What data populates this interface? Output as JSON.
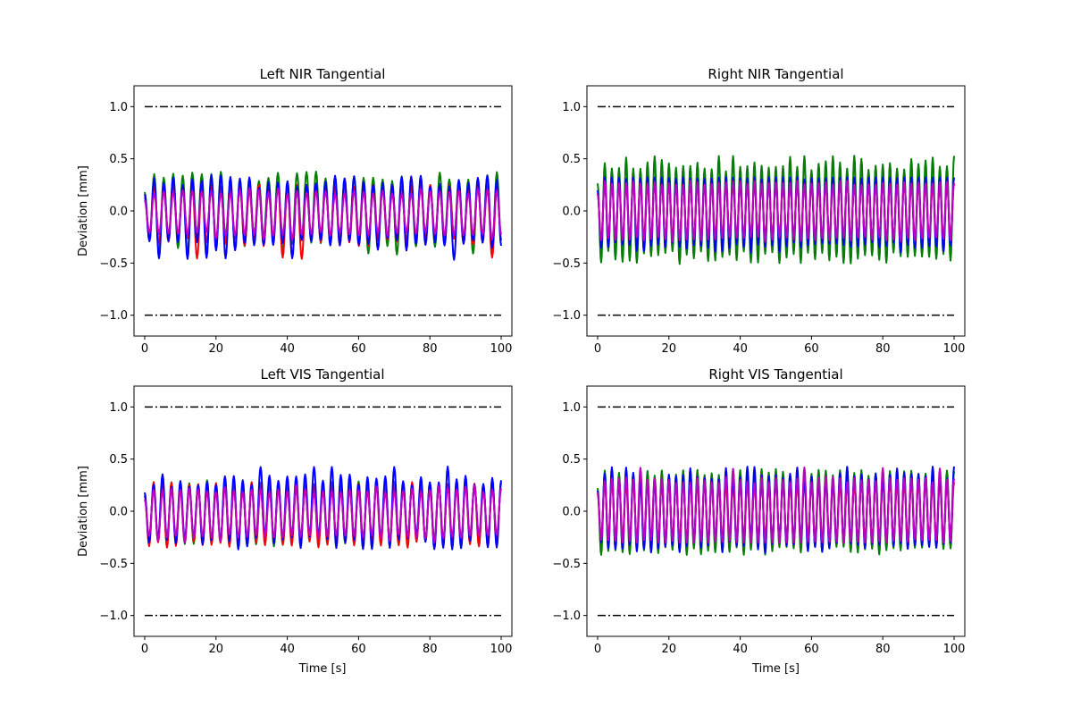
{
  "figure": {
    "background": "#ffffff"
  },
  "chart_data": [
    {
      "type": "line",
      "title": "Left NIR Tangential",
      "xlabel": "",
      "ylabel": "Deviation [mm]",
      "xlim": [
        -3,
        103
      ],
      "ylim": [
        -1.2,
        1.2
      ],
      "xticks": [
        0,
        20,
        40,
        60,
        80,
        100
      ],
      "yticks": [
        1.0,
        0.5,
        0.0,
        -0.5,
        -1.0
      ],
      "xtick_labels": [
        "0",
        "20",
        "40",
        "60",
        "80",
        "100"
      ],
      "ytick_labels": [
        "1.0",
        "0.5",
        "0.0",
        "−0.5",
        "−1.0"
      ],
      "grid": false,
      "reference_lines": [
        {
          "y": 1.0,
          "x": [
            0,
            100
          ],
          "style": "dash-dot",
          "color": "#000000"
        },
        {
          "y": -1.0,
          "x": [
            0,
            100
          ],
          "style": "dash-dot",
          "color": "#000000"
        }
      ],
      "series": [
        {
          "color": "#008000",
          "x_range": [
            0,
            100
          ],
          "period_s": 2.67,
          "mean": 0.0,
          "amplitude": 0.3,
          "peak_max": 0.38,
          "trough_min": -0.42,
          "jitter": 0.06
        },
        {
          "color": "#ff0000",
          "x_range": [
            0,
            100
          ],
          "period_s": 2.67,
          "mean": -0.03,
          "amplitude": 0.27,
          "peak_max": 0.25,
          "trough_min": -0.46,
          "jitter": 0.05
        },
        {
          "color": "#0000ff",
          "x_range": [
            0,
            100
          ],
          "period_s": 2.67,
          "mean": -0.02,
          "amplitude": 0.3,
          "peak_max": 0.35,
          "trough_min": -0.47,
          "jitter": 0.06
        },
        {
          "color": "#bf00bf",
          "x_range": [
            0,
            100
          ],
          "period_s": 2.67,
          "mean": -0.02,
          "amplitude": 0.2,
          "peak_max": 0.22,
          "trough_min": -0.28,
          "jitter": 0.02
        }
      ]
    },
    {
      "type": "line",
      "title": "Right NIR Tangential",
      "xlabel": "",
      "ylabel": "",
      "xlim": [
        -3,
        103
      ],
      "ylim": [
        -1.2,
        1.2
      ],
      "xticks": [
        0,
        20,
        40,
        60,
        80,
        100
      ],
      "yticks": [
        1.0,
        0.5,
        0.0,
        -0.5,
        -1.0
      ],
      "xtick_labels": [
        "0",
        "20",
        "40",
        "60",
        "80",
        "100"
      ],
      "ytick_labels": [
        "1.0",
        "0.5",
        "0.0",
        "−0.5",
        "−1.0"
      ],
      "grid": false,
      "reference_lines": [
        {
          "y": 1.0,
          "x": [
            0,
            100
          ],
          "style": "dash-dot",
          "color": "#000000"
        },
        {
          "y": -1.0,
          "x": [
            0,
            100
          ],
          "style": "dash-dot",
          "color": "#000000"
        }
      ],
      "series": [
        {
          "color": "#008000",
          "x_range": [
            0,
            100
          ],
          "period_s": 2.0,
          "mean": 0.0,
          "amplitude": 0.44,
          "peak_max": 0.53,
          "trough_min": -0.51,
          "jitter": 0.06
        },
        {
          "color": "#ff0000",
          "x_range": [
            0,
            100
          ],
          "period_s": 2.0,
          "mean": 0.0,
          "amplitude": 0.28,
          "peak_max": 0.3,
          "trough_min": -0.3,
          "jitter": 0.02
        },
        {
          "color": "#0000ff",
          "x_range": [
            0,
            100
          ],
          "period_s": 2.0,
          "mean": 0.0,
          "amplitude": 0.33,
          "peak_max": 0.32,
          "trough_min": -0.4,
          "jitter": 0.03
        },
        {
          "color": "#bf00bf",
          "x_range": [
            0,
            100
          ],
          "period_s": 2.0,
          "mean": 0.0,
          "amplitude": 0.27,
          "peak_max": 0.29,
          "trough_min": -0.3,
          "jitter": 0.02
        }
      ]
    },
    {
      "type": "line",
      "title": "Left VIS Tangential",
      "xlabel": "Time [s]",
      "ylabel": "Deviation [mm]",
      "xlim": [
        -3,
        103
      ],
      "ylim": [
        -1.2,
        1.2
      ],
      "xticks": [
        0,
        20,
        40,
        60,
        80,
        100
      ],
      "yticks": [
        1.0,
        0.5,
        0.0,
        -0.5,
        -1.0
      ],
      "xtick_labels": [
        "0",
        "20",
        "40",
        "60",
        "80",
        "100"
      ],
      "ytick_labels": [
        "1.0",
        "0.5",
        "0.0",
        "−0.5",
        "−1.0"
      ],
      "grid": false,
      "reference_lines": [
        {
          "y": 1.0,
          "x": [
            0,
            100
          ],
          "style": "dash-dot",
          "color": "#000000"
        },
        {
          "y": -1.0,
          "x": [
            0,
            100
          ],
          "style": "dash-dot",
          "color": "#000000"
        }
      ],
      "series": [
        {
          "color": "#008000",
          "x_range": [
            0,
            100
          ],
          "period_s": 2.5,
          "mean": -0.02,
          "amplitude": 0.27,
          "peak_max": 0.3,
          "trough_min": -0.34,
          "jitter": 0.03
        },
        {
          "color": "#ff0000",
          "x_range": [
            0,
            100
          ],
          "period_s": 2.5,
          "mean": -0.02,
          "amplitude": 0.29,
          "peak_max": 0.28,
          "trough_min": -0.35,
          "jitter": 0.02
        },
        {
          "color": "#0000ff",
          "x_range": [
            0,
            100
          ],
          "period_s": 2.5,
          "mean": 0.0,
          "amplitude": 0.3,
          "peak_max": 0.44,
          "trough_min": -0.37,
          "jitter": 0.07
        },
        {
          "color": "#bf00bf",
          "x_range": [
            0,
            100
          ],
          "period_s": 2.5,
          "mean": -0.02,
          "amplitude": 0.22,
          "peak_max": 0.25,
          "trough_min": -0.3,
          "jitter": 0.02
        }
      ]
    },
    {
      "type": "line",
      "title": "Right VIS Tangential",
      "xlabel": "Time [s]",
      "ylabel": "",
      "xlim": [
        -3,
        103
      ],
      "ylim": [
        -1.2,
        1.2
      ],
      "xticks": [
        0,
        20,
        40,
        60,
        80,
        100
      ],
      "yticks": [
        1.0,
        0.5,
        0.0,
        -0.5,
        -1.0
      ],
      "xtick_labels": [
        "0",
        "20",
        "40",
        "60",
        "80",
        "100"
      ],
      "ytick_labels": [
        "1.0",
        "0.5",
        "0.0",
        "−0.5",
        "−1.0"
      ],
      "grid": false,
      "reference_lines": [
        {
          "y": 1.0,
          "x": [
            0,
            100
          ],
          "style": "dash-dot",
          "color": "#000000"
        },
        {
          "y": -1.0,
          "x": [
            0,
            100
          ],
          "style": "dash-dot",
          "color": "#000000"
        }
      ],
      "series": [
        {
          "color": "#008000",
          "x_range": [
            0,
            100
          ],
          "period_s": 2.0,
          "mean": 0.0,
          "amplitude": 0.37,
          "peak_max": 0.41,
          "trough_min": -0.42,
          "jitter": 0.03
        },
        {
          "color": "#ff0000",
          "x_range": [
            0,
            100
          ],
          "period_s": 2.0,
          "mean": 0.0,
          "amplitude": 0.28,
          "peak_max": 0.3,
          "trough_min": -0.3,
          "jitter": 0.02
        },
        {
          "color": "#0000ff",
          "x_range": [
            0,
            100
          ],
          "period_s": 2.0,
          "mean": 0.0,
          "amplitude": 0.33,
          "peak_max": 0.43,
          "trough_min": -0.4,
          "jitter": 0.04
        },
        {
          "color": "#bf00bf",
          "x_range": [
            0,
            100
          ],
          "period_s": 2.0,
          "mean": 0.0,
          "amplitude": 0.3,
          "peak_max": 0.42,
          "trough_min": -0.3,
          "jitter": 0.03
        }
      ]
    }
  ]
}
